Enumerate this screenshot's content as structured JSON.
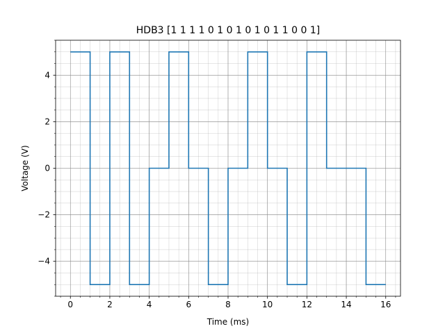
{
  "chart_data": {
    "type": "line",
    "title": "HDB3 [1 1 1 1 0 1 0 1 0 1 0 1 1 0 0 1]",
    "xlabel": "Time (ms)",
    "ylabel": "Voltage (V)",
    "xlim": [
      -0.75,
      16.75
    ],
    "ylim": [
      -5.5,
      5.5
    ],
    "xticks": [
      0,
      2,
      4,
      6,
      8,
      10,
      12,
      14,
      16
    ],
    "yticks": [
      -4,
      -2,
      0,
      2,
      4
    ],
    "grid": true,
    "line_color": "#1f77b4",
    "series": [
      {
        "x": [
          0,
          1,
          1,
          2,
          2,
          3,
          3,
          4,
          4,
          5,
          5,
          6,
          6,
          7,
          7,
          8,
          8,
          9,
          9,
          10,
          10,
          11,
          11,
          12,
          12,
          13,
          13,
          14,
          14,
          15,
          15,
          16
        ],
        "y": [
          5,
          5,
          -5,
          -5,
          5,
          5,
          -5,
          -5,
          0,
          0,
          5,
          5,
          0,
          0,
          -5,
          -5,
          0,
          0,
          5,
          5,
          0,
          0,
          -5,
          -5,
          5,
          5,
          0,
          0,
          0,
          0,
          -5,
          -5
        ]
      }
    ]
  }
}
